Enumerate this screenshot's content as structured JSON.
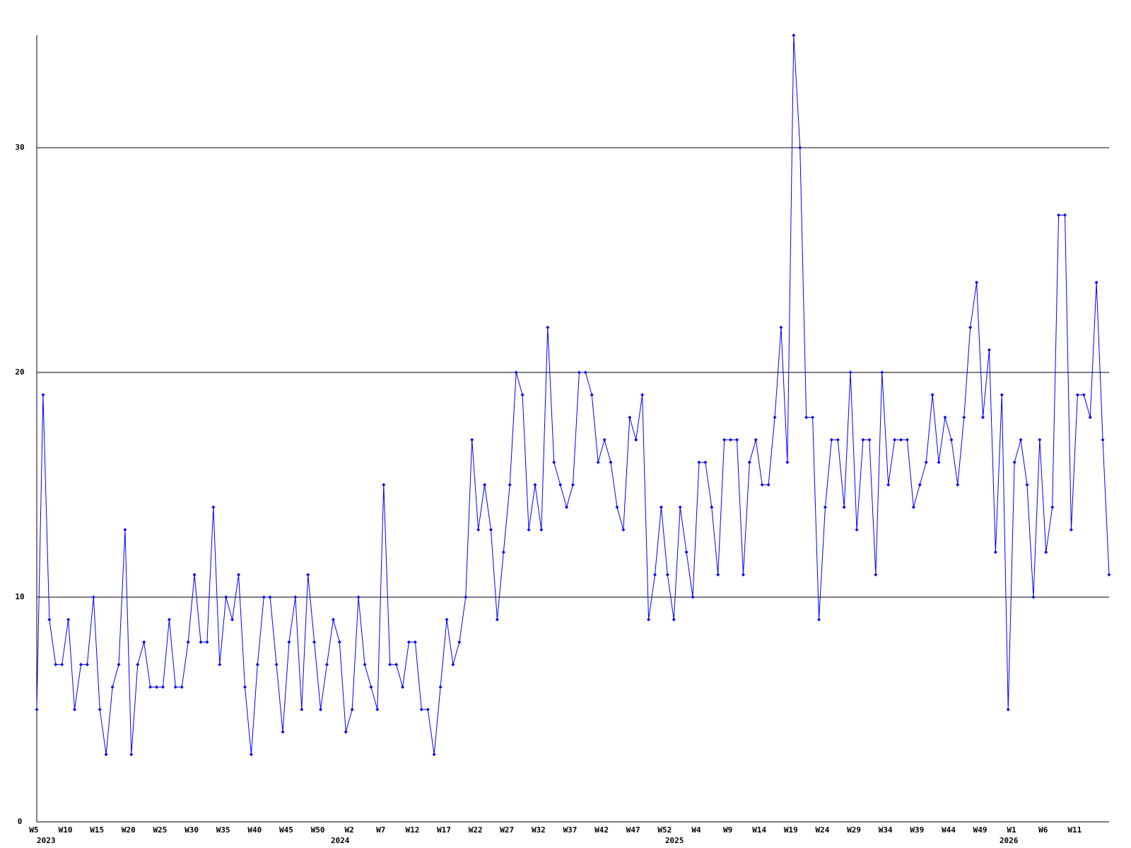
{
  "chart_data": {
    "type": "line",
    "color": "#0000ff",
    "grid": true,
    "ylim": [
      0,
      35
    ],
    "yticks": [
      0,
      10,
      20,
      30
    ],
    "categories": [
      "W5",
      null,
      null,
      null,
      null,
      "W10",
      null,
      null,
      null,
      null,
      "W15",
      null,
      null,
      null,
      null,
      "W20",
      null,
      null,
      null,
      null,
      "W25",
      null,
      null,
      null,
      null,
      "W30",
      null,
      null,
      null,
      null,
      "W35",
      null,
      null,
      null,
      null,
      "W40",
      null,
      null,
      null,
      null,
      "W45",
      null,
      null,
      null,
      null,
      "W50",
      null,
      null,
      null,
      null,
      "W2",
      null,
      null,
      null,
      null,
      "W7",
      null,
      null,
      null,
      null,
      "W12",
      null,
      null,
      null,
      null,
      "W17",
      null,
      null,
      null,
      null,
      "W22",
      null,
      null,
      null,
      null,
      "W27",
      null,
      null,
      null,
      null,
      "W32",
      null,
      null,
      null,
      null,
      "W37",
      null,
      null,
      null,
      null,
      "W42",
      null,
      null,
      null,
      null,
      "W47",
      null,
      null,
      null,
      null,
      "W52",
      null,
      null,
      null,
      null,
      "W4",
      null,
      null,
      null,
      null,
      "W9",
      null,
      null,
      null,
      null,
      "W14",
      null,
      null,
      null,
      null,
      "W19",
      null,
      null,
      null,
      null,
      "W24",
      null,
      null,
      null,
      null,
      "W29",
      null,
      null,
      null,
      null,
      "W34",
      null,
      null,
      null,
      null,
      "W39",
      null,
      null,
      null,
      null,
      "W44",
      null,
      null,
      null,
      null,
      "W49",
      null,
      null,
      null,
      null,
      "W1",
      null,
      null,
      null,
      null,
      "W6",
      null,
      null,
      null,
      null,
      "W11",
      null,
      null,
      null,
      null,
      null
    ],
    "year_labels": [
      {
        "category": 0,
        "label": "2023"
      },
      {
        "category": 49,
        "label": "2024"
      },
      {
        "category": 102,
        "label": "2025"
      },
      {
        "category": 155,
        "label": "2026"
      }
    ],
    "values": [
      5,
      19,
      9,
      7,
      7,
      9,
      5,
      7,
      7,
      10,
      5,
      3,
      6,
      7,
      13,
      3,
      7,
      8,
      6,
      6,
      6,
      9,
      6,
      6,
      8,
      11,
      8,
      8,
      14,
      7,
      10,
      9,
      11,
      6,
      3,
      7,
      10,
      10,
      7,
      4,
      8,
      10,
      5,
      11,
      8,
      5,
      7,
      9,
      8,
      4,
      5,
      10,
      7,
      6,
      5,
      15,
      7,
      7,
      6,
      8,
      8,
      5,
      5,
      3,
      6,
      9,
      7,
      8,
      10,
      17,
      13,
      15,
      13,
      9,
      12,
      15,
      20,
      19,
      13,
      15,
      13,
      22,
      16,
      15,
      14,
      15,
      20,
      20,
      19,
      16,
      17,
      16,
      14,
      13,
      18,
      17,
      19,
      9,
      11,
      14,
      11,
      9,
      14,
      12,
      10,
      16,
      16,
      14,
      11,
      17,
      17,
      17,
      11,
      16,
      17,
      15,
      15,
      18,
      22,
      16,
      35,
      30,
      18,
      18,
      9,
      14,
      17,
      17,
      14,
      20,
      13,
      17,
      17,
      11,
      20,
      15,
      17,
      17,
      17,
      14,
      15,
      16,
      19,
      16,
      18,
      17,
      15,
      18,
      22,
      24,
      18,
      21,
      12,
      19,
      5,
      16,
      17,
      15,
      10,
      17,
      12,
      14,
      27,
      27,
      13,
      19,
      19,
      18,
      24,
      17,
      11
    ]
  }
}
